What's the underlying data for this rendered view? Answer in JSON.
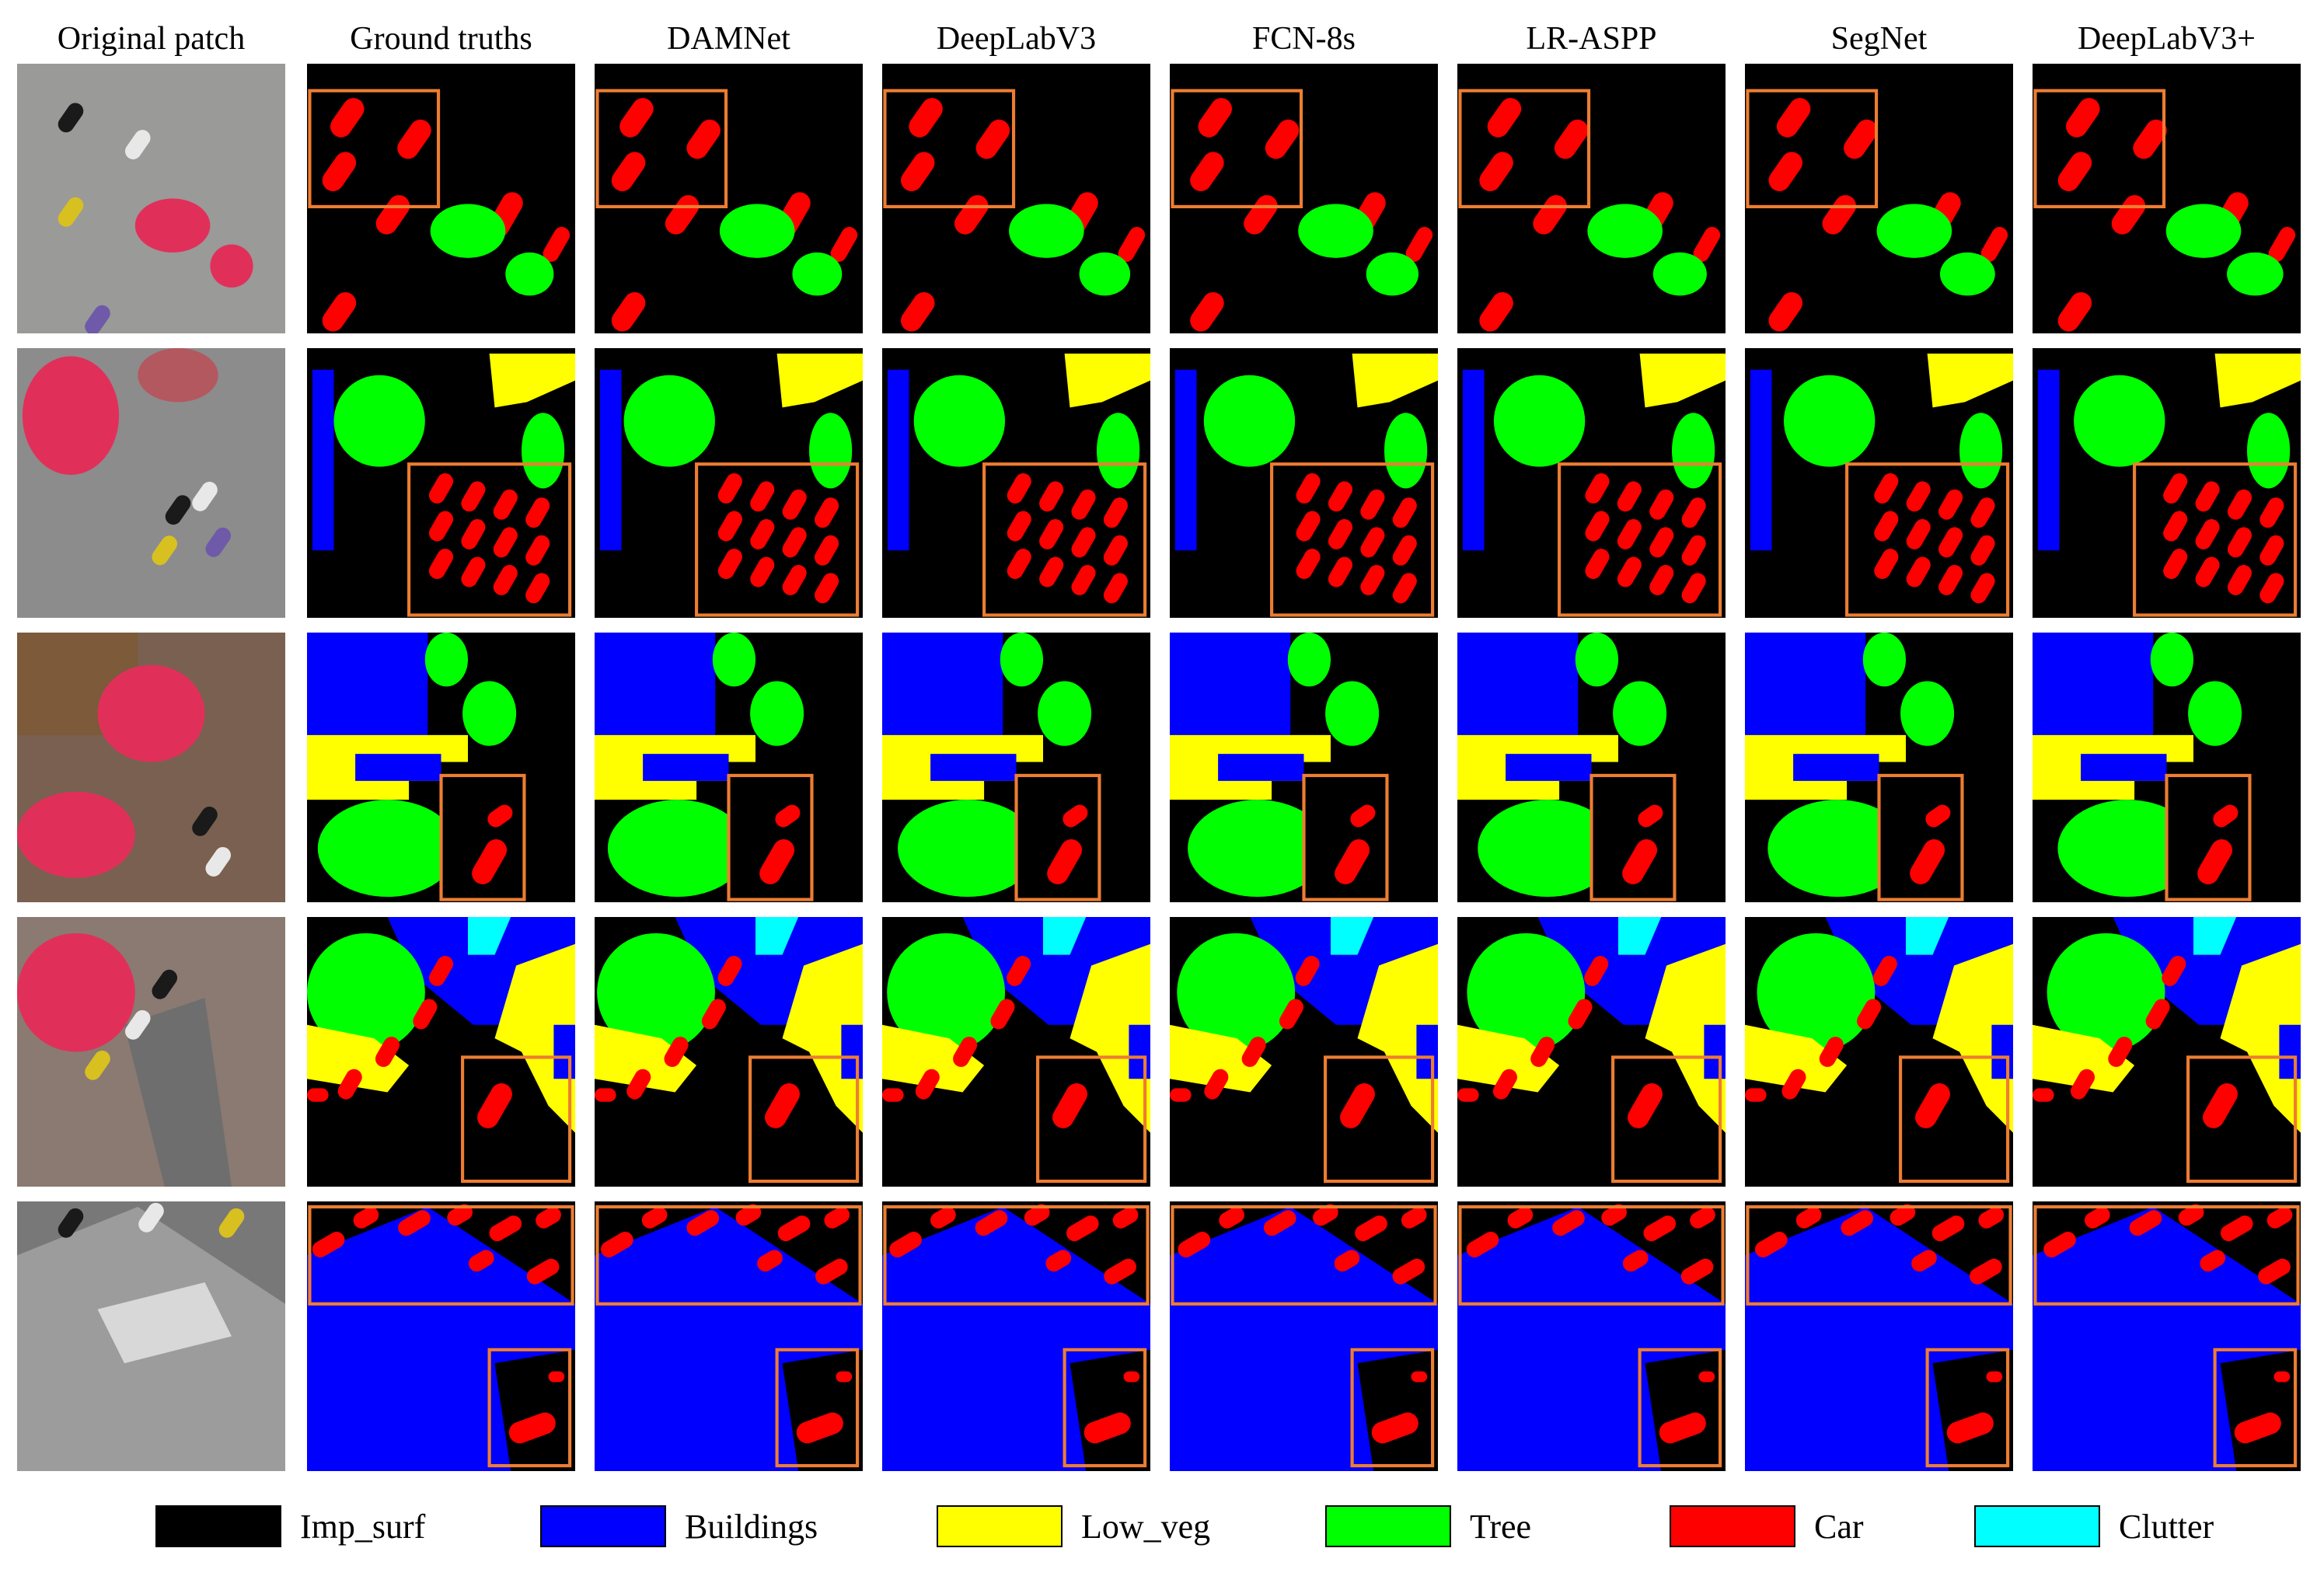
{
  "columns": [
    {
      "key": "orig",
      "label": "Original patch"
    },
    {
      "key": "gt",
      "label": "Ground truths"
    },
    {
      "key": "damnet",
      "label": "DAMNet"
    },
    {
      "key": "dlv3",
      "label": "DeepLabV3"
    },
    {
      "key": "fcn",
      "label": "FCN-8s"
    },
    {
      "key": "lraspp",
      "label": "LR-ASPP"
    },
    {
      "key": "segnet",
      "label": "SegNet"
    },
    {
      "key": "dlv3p",
      "label": "DeepLabV3+"
    }
  ],
  "rows": [
    "patch-1",
    "patch-2",
    "patch-3",
    "patch-4",
    "patch-5"
  ],
  "legend": [
    {
      "key": "imp",
      "label": "Imp_surf",
      "color": "#000000"
    },
    {
      "key": "building",
      "label": "Buildings",
      "color": "#0000ff"
    },
    {
      "key": "lowveg",
      "label": "Low_veg",
      "color": "#ffff00"
    },
    {
      "key": "tree",
      "label": "Tree",
      "color": "#00ff00"
    },
    {
      "key": "car",
      "label": "Car",
      "color": "#ff0000"
    },
    {
      "key": "clutter",
      "label": "Clutter",
      "color": "#00ffff"
    }
  ],
  "highlight_color": "#ed7d31"
}
